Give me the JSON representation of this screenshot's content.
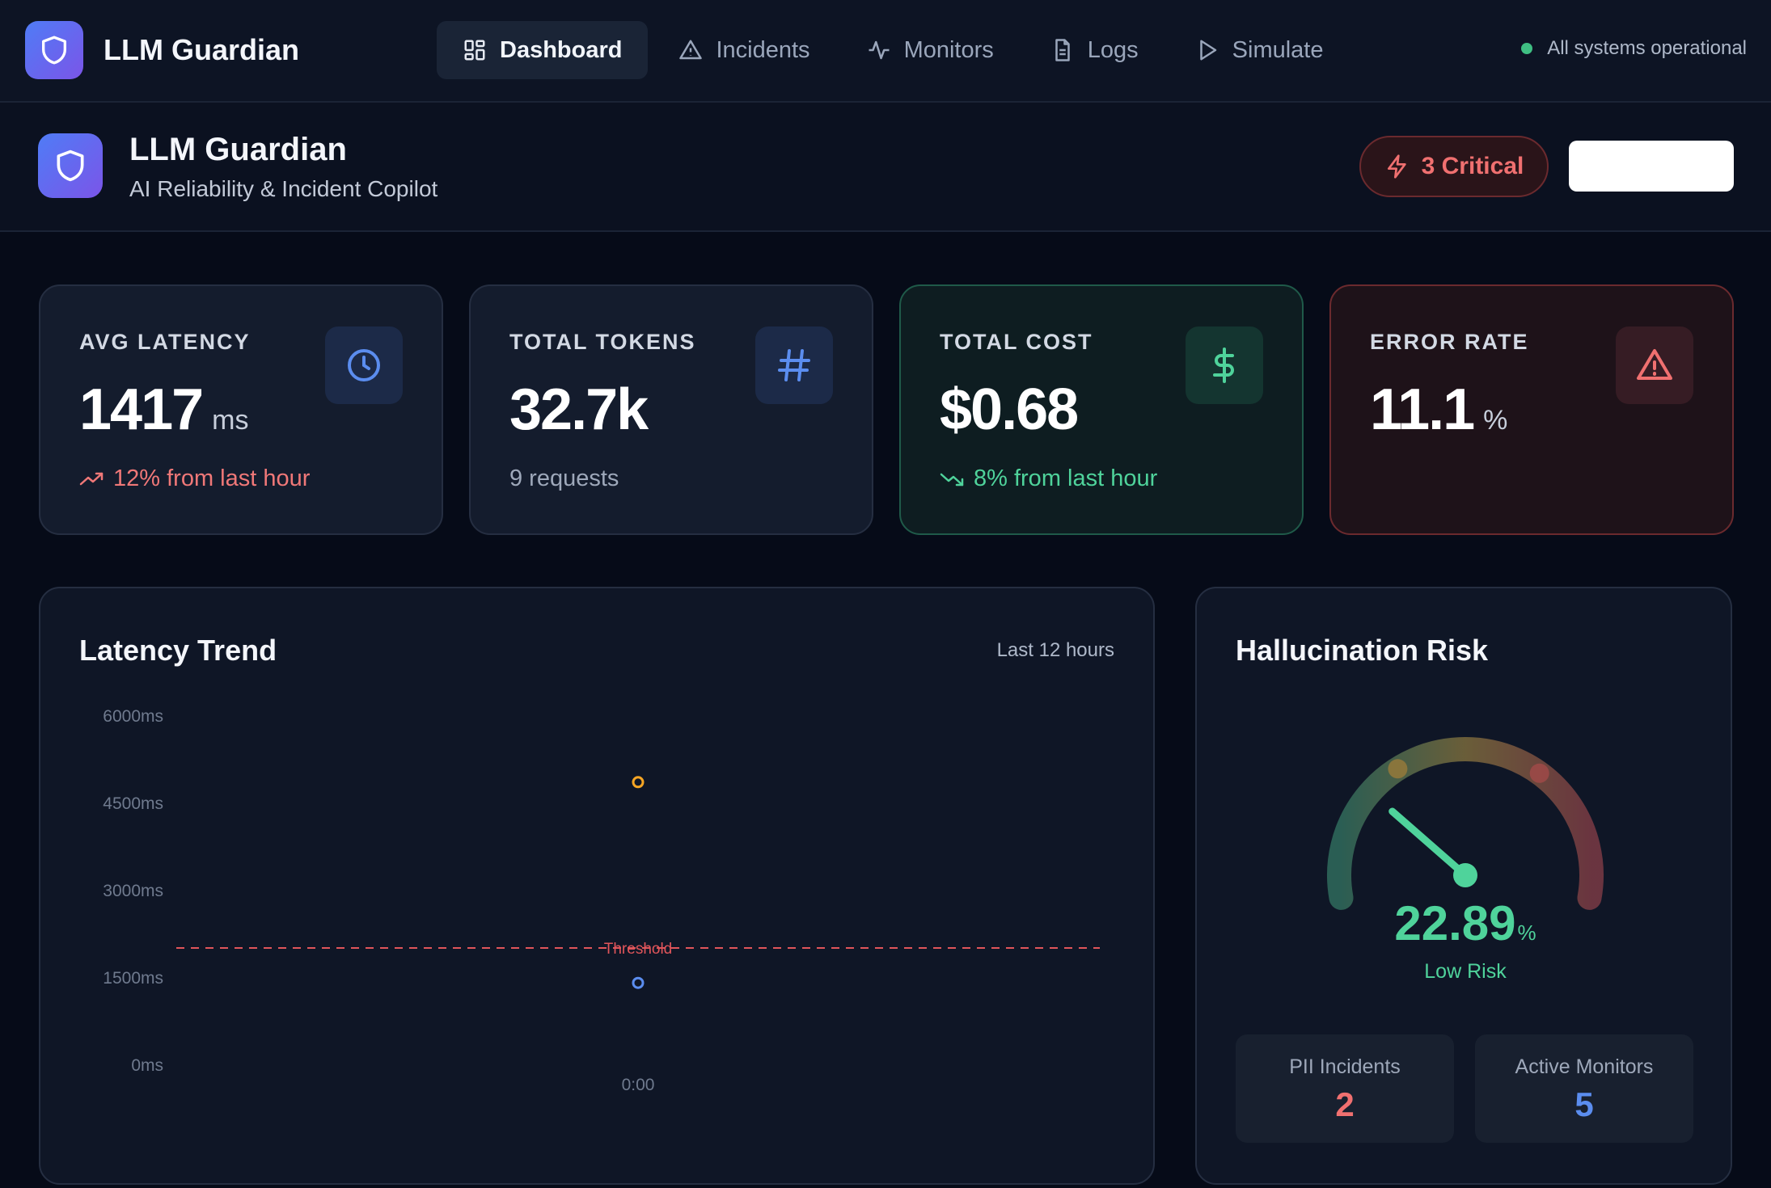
{
  "nav": {
    "brand": "LLM Guardian",
    "items": [
      {
        "label": "Dashboard",
        "icon": "grid-icon",
        "active": true
      },
      {
        "label": "Incidents",
        "icon": "alert-triangle-icon",
        "active": false
      },
      {
        "label": "Monitors",
        "icon": "activity-icon",
        "active": false
      },
      {
        "label": "Logs",
        "icon": "file-text-icon",
        "active": false
      },
      {
        "label": "Simulate",
        "icon": "play-icon",
        "active": false
      }
    ],
    "status": "All systems operational"
  },
  "header": {
    "title": "LLM Guardian",
    "subtitle": "AI Reliability & Incident Copilot",
    "critical_label": "3 Critical"
  },
  "stats": {
    "latency": {
      "label": "AVG LATENCY",
      "value": "1417",
      "unit": "ms",
      "delta": "12% from last hour",
      "icon": "clock-icon"
    },
    "tokens": {
      "label": "TOTAL TOKENS",
      "value": "32.7k",
      "sub": "9 requests",
      "icon": "hash-icon"
    },
    "cost": {
      "label": "TOTAL COST",
      "value": "$0.68",
      "delta": "8% from last hour",
      "icon": "dollar-icon"
    },
    "error": {
      "label": "ERROR RATE",
      "value": "11.1",
      "unit": "%",
      "icon": "alert-triangle-icon"
    }
  },
  "latency_panel": {
    "title": "Latency Trend",
    "range": "Last 12 hours",
    "threshold_label": "Threshold"
  },
  "chart_data": {
    "type": "scatter",
    "title": "Latency Trend",
    "yticks": [
      "6000ms",
      "4500ms",
      "3000ms",
      "1500ms",
      "0ms"
    ],
    "xticks": [
      "0:00"
    ],
    "ylim": [
      0,
      6000
    ],
    "threshold": 2000,
    "series": [
      {
        "color": "#f5a524",
        "points": [
          {
            "x": "0:00",
            "y": 4850
          }
        ]
      },
      {
        "color": "#5b8def",
        "points": [
          {
            "x": "0:00",
            "y": 1400
          }
        ]
      }
    ],
    "grid": false
  },
  "risk_panel": {
    "title": "Hallucination Risk",
    "value": "22.89",
    "unit": "%",
    "level": 0.2289,
    "label": "Low Risk",
    "pii_label": "PII Incidents",
    "pii_value": "2",
    "monitors_label": "Active Monitors",
    "monitors_value": "5"
  },
  "colors": {
    "accent_blue": "#5b8def",
    "green": "#4fd39b",
    "red": "#f07070",
    "amber": "#f5a524"
  }
}
